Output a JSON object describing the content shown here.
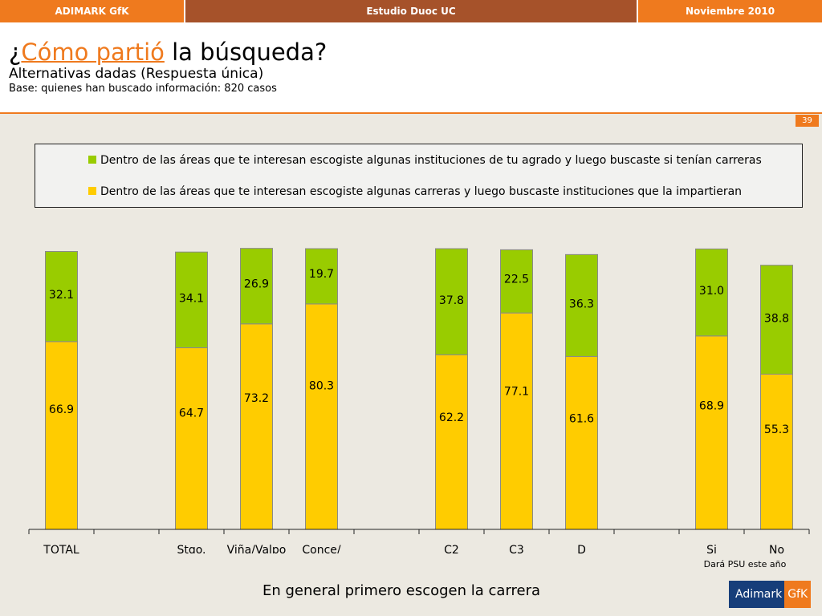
{
  "topbar": {
    "left": "ADIMARK GfK",
    "center": "Estudio Duoc UC",
    "right": "Noviembre 2010"
  },
  "header": {
    "title_prefix": "¿",
    "title_highlight": "Cómo partió",
    "title_suffix": " la búsqueda?",
    "subtitle": "Alternativas dadas (Respuesta única)",
    "base": "Base: quienes han buscado información: 820 casos"
  },
  "page_number": "39",
  "colors": {
    "green": "#99CC00",
    "yellow": "#FFCC00",
    "accent": "#EF7A1E"
  },
  "chart_data": {
    "type": "bar",
    "stacked": true,
    "categories": [
      "TOTAL",
      "Stgo.",
      "Viña/Valpo",
      "Conce/\nThno",
      "C2",
      "C3",
      "D",
      "Si",
      "No"
    ],
    "slots": [
      0,
      2,
      3,
      4,
      6,
      7,
      8,
      10,
      11
    ],
    "series": [
      {
        "name": "Dentro de las áreas que te interesan escogiste algunas carreras y luego buscaste instituciones que la impartieran",
        "color": "#FFCC00",
        "values": [
          66.9,
          64.7,
          73.2,
          80.3,
          62.2,
          77.1,
          61.6,
          68.9,
          55.3
        ]
      },
      {
        "name": "Dentro de las áreas que te interesan escogiste algunas instituciones de tu agrado y luego buscaste si tenían carreras",
        "color": "#99CC00",
        "values": [
          32.1,
          34.1,
          26.9,
          19.7,
          37.8,
          22.5,
          36.3,
          31.0,
          38.8
        ]
      }
    ],
    "ylim": [
      0,
      100
    ],
    "legend_position": "top",
    "group_note": "Dará PSU este año",
    "caption": "En general primero escogen la carrera"
  },
  "logo": {
    "main": "Adimark",
    "sub": "GfK"
  }
}
